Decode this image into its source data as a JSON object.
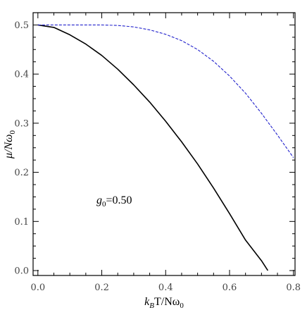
{
  "chart_data": {
    "type": "line",
    "title": "",
    "xlabel": {
      "main": "k",
      "sub1": "B",
      "mid": "T/Nω",
      "sub2": "0"
    },
    "ylabel": {
      "main": "μ/Nω",
      "sub": "0"
    },
    "xlim": [
      -0.015,
      0.805
    ],
    "ylim": [
      -0.01,
      0.525
    ],
    "x_ticks": [
      0.0,
      0.2,
      0.4,
      0.6,
      0.8
    ],
    "x_tick_labels": [
      "0.0",
      "0.2",
      "0.4",
      "0.6",
      "0.8"
    ],
    "y_ticks": [
      0.0,
      0.1,
      0.2,
      0.3,
      0.4,
      0.5
    ],
    "y_tick_labels": [
      "0.0",
      "0.1",
      "0.2",
      "0.3",
      "0.4",
      "0.5"
    ],
    "grid": false,
    "legend": "none",
    "annotation": {
      "pre": "g",
      "sub": "0",
      "post": "=0.50",
      "x": 0.18,
      "y": 0.145
    },
    "series": [
      {
        "style": "solid",
        "color": "#000000",
        "x": [
          0.0,
          0.05,
          0.1,
          0.15,
          0.2,
          0.25,
          0.3,
          0.35,
          0.4,
          0.45,
          0.5,
          0.55,
          0.6,
          0.65,
          0.7,
          0.72
        ],
        "y": [
          0.5,
          0.495,
          0.48,
          0.461,
          0.438,
          0.41,
          0.378,
          0.343,
          0.304,
          0.262,
          0.217,
          0.168,
          0.116,
          0.062,
          0.02,
          0.0
        ]
      },
      {
        "style": "dashed",
        "color": "#2222cc",
        "x": [
          0.0,
          0.05,
          0.1,
          0.15,
          0.2,
          0.25,
          0.3,
          0.35,
          0.4,
          0.45,
          0.5,
          0.55,
          0.6,
          0.65,
          0.7,
          0.75,
          0.8
        ],
        "y": [
          0.5,
          0.5,
          0.5,
          0.5,
          0.5,
          0.499,
          0.496,
          0.49,
          0.481,
          0.468,
          0.45,
          0.426,
          0.396,
          0.361,
          0.32,
          0.276,
          0.23
        ]
      }
    ]
  }
}
